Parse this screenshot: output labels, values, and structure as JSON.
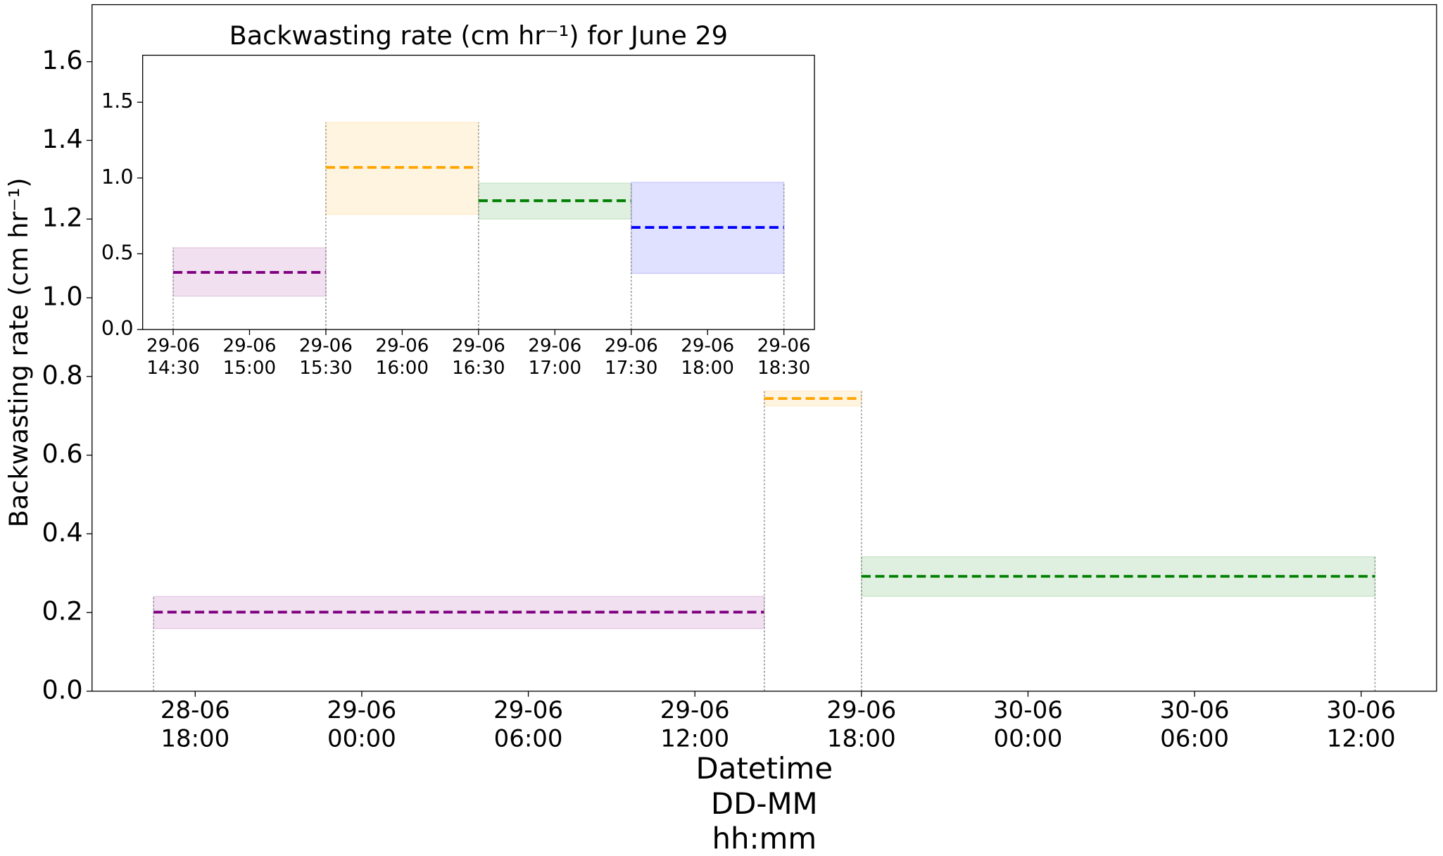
{
  "chart_data": [
    {
      "type": "interval",
      "xlabel": "Datetime\nDD-MM\nhh:mm",
      "ylabel": "Backwasting rate (cm hr⁻¹)",
      "xlim": [
        "28-06 14:17",
        "30-06 14:43"
      ],
      "xticks": [
        "28-06\n18:00",
        "29-06\n00:00",
        "29-06\n06:00",
        "29-06\n12:00",
        "29-06\n18:00",
        "30-06\n00:00",
        "30-06\n06:00",
        "30-06\n12:00"
      ],
      "ylim": [
        0,
        1.745
      ],
      "yticks": [
        {
          "value": 0,
          "label": "0.0"
        },
        0.2,
        0.4,
        0.6,
        0.8,
        {
          "value": 1,
          "label": "1.0"
        },
        1.2,
        1.4,
        1.6
      ],
      "series": [
        {
          "color": "#800080",
          "start": "28-06 16:30",
          "end": "29-06 14:30",
          "value": 0.201,
          "low": 0.159,
          "high": 0.241
        },
        {
          "color": "#ffa500",
          "start": "29-06 14:30",
          "end": "29-06 18:00",
          "value": 0.744,
          "low": 0.725,
          "high": 0.763
        },
        {
          "color": "#008000",
          "start": "29-06 18:00",
          "end": "30-06 12:30",
          "value": 0.292,
          "low": 0.241,
          "high": 0.342
        }
      ]
    },
    {
      "type": "interval",
      "title": "Backwasting rate (cm hr⁻¹) for June 29",
      "xlim": [
        "29-06 14:18",
        "29-06 18:42"
      ],
      "xticks": [
        "29-06\n14:30",
        "29-06\n15:00",
        "29-06\n15:30",
        "29-06\n16:00",
        "29-06\n16:30",
        "29-06\n17:00",
        "29-06\n17:30",
        "29-06\n18:00",
        "29-06\n18:30"
      ],
      "ylim": [
        0,
        1.81
      ],
      "yticks": [
        {
          "value": 0,
          "label": "0.0"
        },
        0.5,
        {
          "value": 1,
          "label": "1.0"
        },
        1.5
      ],
      "series": [
        {
          "color": "#800080",
          "start": "29-06 14:30",
          "end": "29-06 15:30",
          "value": 0.377,
          "low": 0.22,
          "high": 0.54
        },
        {
          "color": "#ffa500",
          "start": "29-06 15:30",
          "end": "29-06 16:30",
          "value": 1.07,
          "low": 0.76,
          "high": 1.367
        },
        {
          "color": "#008000",
          "start": "29-06 16:30",
          "end": "29-06 17:30",
          "value": 0.85,
          "low": 0.729,
          "high": 0.966
        },
        {
          "color": "#0000ff",
          "start": "29-06 17:30",
          "end": "29-06 18:30",
          "value": 0.674,
          "low": 0.37,
          "high": 0.972
        }
      ]
    }
  ]
}
